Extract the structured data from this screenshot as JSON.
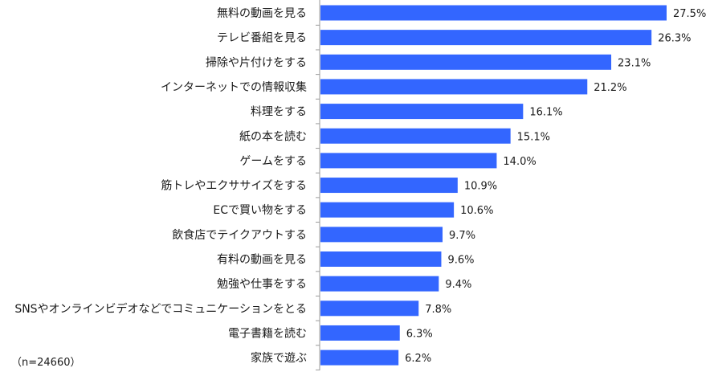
{
  "note": "（n=24660）",
  "chart_data": {
    "type": "bar",
    "orientation": "horizontal",
    "categories": [
      "無料の動画を見る",
      "テレビ番組を見る",
      "掃除や片付けをする",
      "インターネットでの情報収集",
      "料理をする",
      "紙の本を読む",
      "ゲームをする",
      "筋トレやエクササイズをする",
      "ECで買い物をする",
      "飲食店でテイクアウトする",
      "有料の動画を見る",
      "勉強や仕事をする",
      "SNSやオンラインビデオなどでコミュニケーションをとる",
      "電子書籍を読む",
      "家族で遊ぶ"
    ],
    "values": [
      27.5,
      26.3,
      23.1,
      21.2,
      16.1,
      15.1,
      14.0,
      10.9,
      10.6,
      9.7,
      9.6,
      9.4,
      7.8,
      6.3,
      6.2
    ],
    "value_labels": [
      "27.5%",
      "26.3%",
      "23.1%",
      "21.2%",
      "16.1%",
      "15.1%",
      "14.0%",
      "10.9%",
      "10.6%",
      "9.7%",
      "9.6%",
      "9.4%",
      "7.8%",
      "6.3%",
      "6.2%"
    ],
    "xlim": [
      0,
      27.5
    ],
    "grid": false,
    "legend": "none",
    "bar_color": "#3366ff"
  }
}
